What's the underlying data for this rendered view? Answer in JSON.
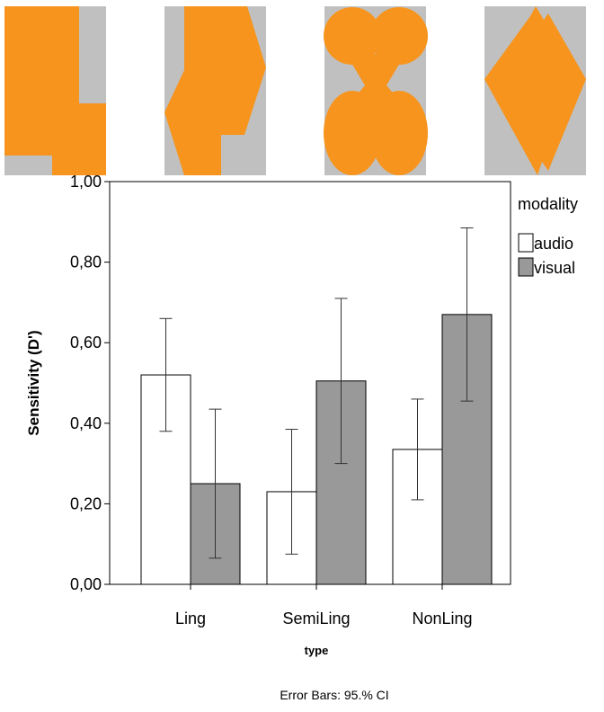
{
  "chart_data": {
    "type": "bar",
    "y_label": "Sensitivity (D')",
    "x_label": "type",
    "legend_title": "modality",
    "footnote": "Error Bars: 95.% CI",
    "categories": [
      "Ling",
      "SemiLing",
      "NonLing"
    ],
    "series": [
      {
        "name": "audio",
        "color": "#ffffff",
        "values": [
          0.52,
          0.23,
          0.335
        ],
        "ci_low": [
          0.38,
          0.075,
          0.21
        ],
        "ci_high": [
          0.66,
          0.385,
          0.46
        ]
      },
      {
        "name": "visual",
        "color": "#999999",
        "values": [
          0.25,
          0.505,
          0.67
        ],
        "ci_low": [
          0.065,
          0.3,
          0.455
        ],
        "ci_high": [
          0.435,
          0.71,
          0.885
        ]
      }
    ],
    "ylim": [
      0,
      1
    ],
    "yticks": [
      {
        "value": 0,
        "label": "0,00"
      },
      {
        "value": 0.2,
        "label": "0,20"
      },
      {
        "value": 0.4,
        "label": "0,40"
      },
      {
        "value": 0.6,
        "label": "0,60"
      },
      {
        "value": 0.8,
        "label": "0,80"
      },
      {
        "value": 1,
        "label": "1,00"
      }
    ]
  }
}
